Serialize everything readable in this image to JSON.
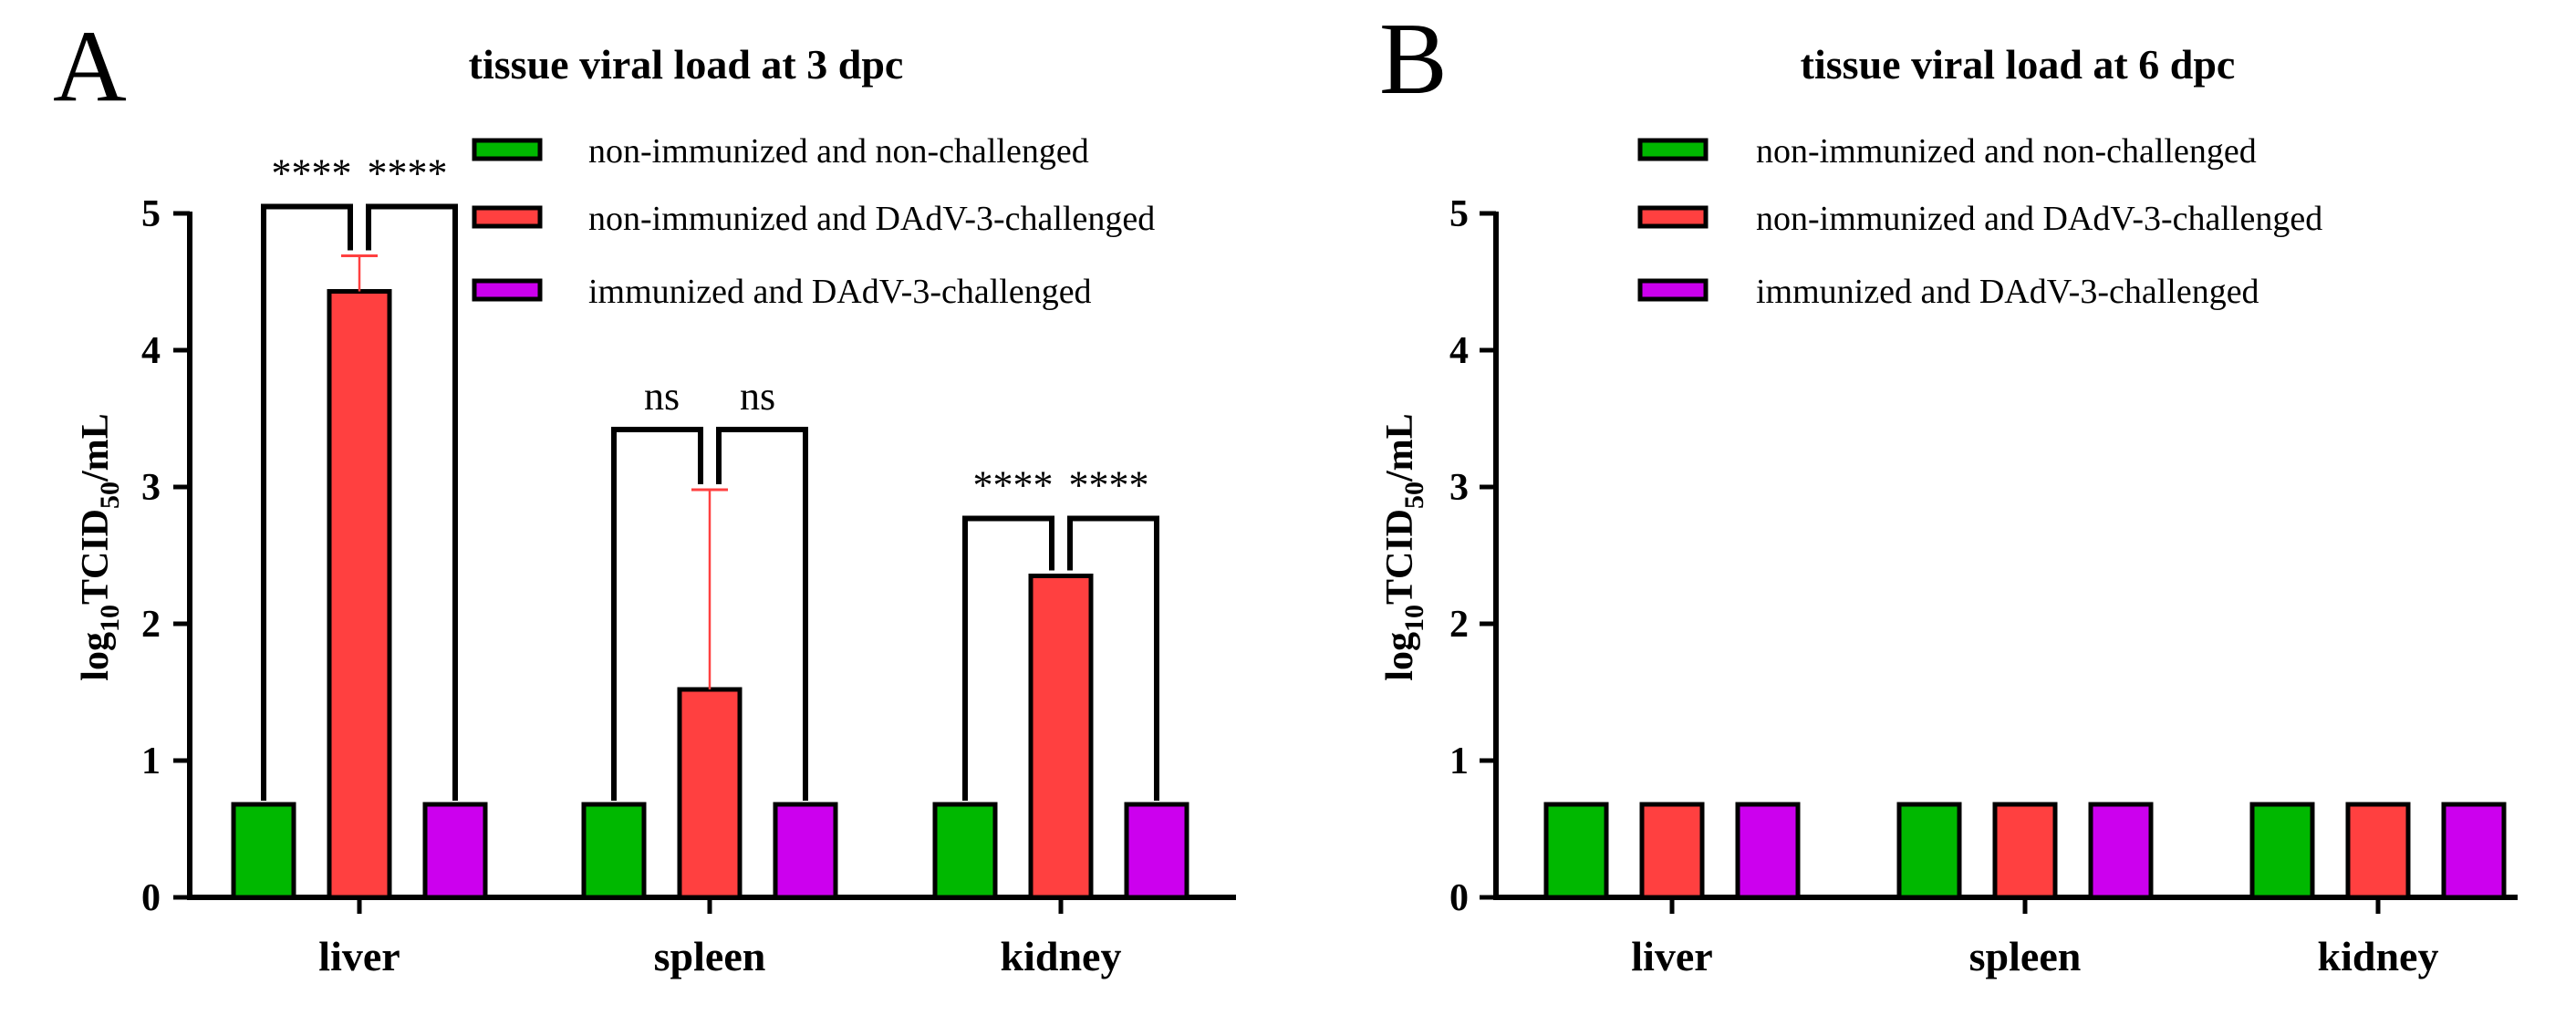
{
  "chart_data": [
    {
      "type": "bar",
      "panel_label": "A",
      "title": "tissue viral load at 3 dpc",
      "xlabel": "",
      "ylabel": {
        "prefix": "log",
        "sub1": "10",
        "mid": "TCID",
        "sub2": "50",
        "suffix": "/mL"
      },
      "ylim": [
        0,
        5
      ],
      "yticks": [
        "0",
        "1",
        "2",
        "3",
        "4",
        "5"
      ],
      "categories": [
        "liver",
        "spleen",
        "kidney"
      ],
      "series": [
        {
          "name": "non-immunized and non-challenged",
          "color": "#00B800",
          "values": [
            0.68,
            0.68,
            0.68
          ],
          "errors": [
            0,
            0,
            0
          ]
        },
        {
          "name": "non-immunized and DAdV-3-challenged",
          "color": "#FF4040",
          "values": [
            4.43,
            1.52,
            2.35
          ],
          "errors": [
            0.26,
            1.46,
            0
          ]
        },
        {
          "name": "immunized and DAdV-3-challenged",
          "color": "#CC00EE",
          "values": [
            0.68,
            0.68,
            0.68
          ],
          "errors": [
            0,
            0,
            0
          ]
        }
      ],
      "significance": [
        {
          "category": "liver",
          "left": "****",
          "right": "****",
          "bracket_y": 5.05
        },
        {
          "category": "spleen",
          "left": "ns",
          "right": "ns",
          "bracket_y": 3.42
        },
        {
          "category": "kidney",
          "left": "****",
          "right": "****",
          "bracket_y": 2.77
        }
      ]
    },
    {
      "type": "bar",
      "panel_label": "B",
      "title": "tissue viral load at 6 dpc",
      "xlabel": "",
      "ylabel": {
        "prefix": "log",
        "sub1": "10",
        "mid": "TCID",
        "sub2": "50",
        "suffix": "/mL"
      },
      "ylim": [
        0,
        5
      ],
      "yticks": [
        "0",
        "1",
        "2",
        "3",
        "4",
        "5"
      ],
      "categories": [
        "liver",
        "spleen",
        "kidney"
      ],
      "series": [
        {
          "name": "non-immunized and non-challenged",
          "color": "#00B800",
          "values": [
            0.68,
            0.68,
            0.68
          ],
          "errors": [
            0,
            0,
            0
          ]
        },
        {
          "name": "non-immunized and DAdV-3-challenged",
          "color": "#FF4040",
          "values": [
            0.68,
            0.68,
            0.68
          ],
          "errors": [
            0,
            0,
            0
          ]
        },
        {
          "name": "immunized and DAdV-3-challenged",
          "color": "#CC00EE",
          "values": [
            0.68,
            0.68,
            0.68
          ],
          "errors": [
            0,
            0,
            0
          ]
        }
      ],
      "significance": []
    }
  ]
}
